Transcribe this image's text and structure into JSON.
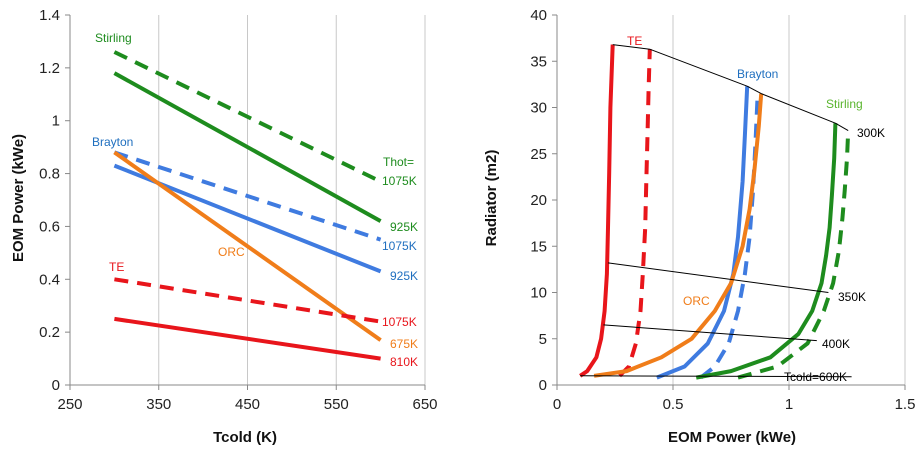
{
  "chart_data": [
    {
      "type": "line",
      "xlabel": "Tcold (K)",
      "ylabel": "EOM Power (kWe)",
      "xlim": [
        250,
        650
      ],
      "ylim": [
        0,
        1.4
      ],
      "xticks": [
        "250",
        "350",
        "450",
        "550",
        "650"
      ],
      "yticks": [
        "0",
        "0.2",
        "0.4",
        "0.6",
        "0.8",
        "1",
        "1.2",
        "1.4"
      ],
      "grid": "vertical",
      "series": [
        {
          "name": "Stirling",
          "label": "925K",
          "color": "#1e8c1e",
          "dash": "solid",
          "x": [
            300,
            600
          ],
          "y": [
            1.18,
            0.62
          ]
        },
        {
          "name": "Stirling",
          "label": "1075K",
          "color": "#1e8c1e",
          "dash": "dashed",
          "x": [
            300,
            600
          ],
          "y": [
            1.26,
            0.77
          ]
        },
        {
          "name": "Brayton",
          "label": "925K",
          "color": "#3f7be0",
          "dash": "solid",
          "x": [
            300,
            600
          ],
          "y": [
            0.83,
            0.43
          ]
        },
        {
          "name": "Brayton",
          "label": "1075K",
          "color": "#3f7be0",
          "dash": "dashed",
          "x": [
            300,
            600
          ],
          "y": [
            0.88,
            0.55
          ]
        },
        {
          "name": "ORC",
          "label": "675K",
          "color": "#f07d1a",
          "dash": "solid",
          "x": [
            300,
            600
          ],
          "y": [
            0.88,
            0.17
          ]
        },
        {
          "name": "TE",
          "label": "810K",
          "color": "#e8151b",
          "dash": "solid",
          "x": [
            300,
            600
          ],
          "y": [
            0.25,
            0.1
          ]
        },
        {
          "name": "TE",
          "label": "1075K",
          "color": "#e8151b",
          "dash": "dashed",
          "x": [
            300,
            600
          ],
          "y": [
            0.4,
            0.24
          ]
        }
      ],
      "annotations": [
        {
          "text": "Stirling",
          "color": "#1e8c1e"
        },
        {
          "text": "Brayton",
          "color": "#1f6fbf"
        },
        {
          "text": "ORC",
          "color": "#f07d1a"
        },
        {
          "text": "TE",
          "color": "#e8151b"
        },
        {
          "text": "Thot=",
          "color": "#1e8c1e"
        },
        {
          "text": "1075K",
          "color": "#1e8c1e"
        },
        {
          "text": "925K",
          "color": "#1e8c1e"
        },
        {
          "text": "1075K",
          "color": "#1f6fbf"
        },
        {
          "text": "925K",
          "color": "#1f6fbf"
        },
        {
          "text": "1075K",
          "color": "#e8151b"
        },
        {
          "text": "675K",
          "color": "#f07d1a"
        },
        {
          "text": "810K",
          "color": "#e8151b"
        }
      ]
    },
    {
      "type": "line",
      "xlabel": "EOM Power (kWe)",
      "ylabel": "Radiator (m2)",
      "xlim": [
        0,
        1.5
      ],
      "ylim": [
        0,
        40
      ],
      "xticks": [
        "0",
        "0.5",
        "1",
        "1.5"
      ],
      "yticks": [
        "0",
        "5",
        "10",
        "15",
        "20",
        "25",
        "30",
        "35",
        "40"
      ],
      "grid": "vertical",
      "series": [
        {
          "name": "TE",
          "color": "#e8151b",
          "dash": "solid",
          "x": [
            0.1,
            0.13,
            0.17,
            0.19,
            0.205,
            0.215,
            0.22,
            0.225,
            0.23,
            0.24
          ],
          "y": [
            1.0,
            1.5,
            3.0,
            5.0,
            8.0,
            12.0,
            17.0,
            23.0,
            30.0,
            36.8
          ]
        },
        {
          "name": "TE",
          "color": "#e8151b",
          "dash": "dashed",
          "x": [
            0.27,
            0.31,
            0.34,
            0.36,
            0.37,
            0.38,
            0.385,
            0.39,
            0.395,
            0.4
          ],
          "y": [
            1.0,
            2.0,
            4.5,
            8.0,
            12.0,
            17.0,
            22.0,
            27.0,
            32.0,
            36.3
          ]
        },
        {
          "name": "Brayton",
          "color": "#3f7be0",
          "dash": "solid",
          "x": [
            0.43,
            0.55,
            0.65,
            0.72,
            0.76,
            0.78,
            0.8,
            0.81,
            0.82
          ],
          "y": [
            0.8,
            2.0,
            4.5,
            8.0,
            12.0,
            16.0,
            22.0,
            27.0,
            32.3
          ]
        },
        {
          "name": "Brayton",
          "color": "#3f7be0",
          "dash": "dashed",
          "x": [
            0.62,
            0.68,
            0.74,
            0.78,
            0.81,
            0.83,
            0.845,
            0.855,
            0.865
          ],
          "y": [
            0.8,
            2.0,
            4.5,
            8.0,
            12.0,
            16.0,
            21.0,
            26.0,
            31.5
          ]
        },
        {
          "name": "ORC",
          "color": "#f07d1a",
          "dash": "solid",
          "x": [
            0.16,
            0.3,
            0.45,
            0.58,
            0.68,
            0.75,
            0.8,
            0.83,
            0.85,
            0.87,
            0.88
          ],
          "y": [
            1.0,
            1.5,
            3.0,
            5.0,
            8.0,
            11.0,
            15.0,
            19.0,
            23.0,
            28.0,
            31.5
          ]
        },
        {
          "name": "Stirling",
          "color": "#1e8c1e",
          "dash": "solid",
          "x": [
            0.6,
            0.75,
            0.92,
            1.04,
            1.1,
            1.14,
            1.16,
            1.175,
            1.185,
            1.195,
            1.2
          ],
          "y": [
            0.8,
            1.5,
            3.0,
            5.5,
            8.0,
            11.0,
            14.0,
            17.0,
            20.5,
            24.5,
            28.3
          ]
        },
        {
          "name": "Stirling",
          "color": "#1e8c1e",
          "dash": "dashed",
          "x": [
            0.78,
            0.95,
            1.08,
            1.15,
            1.19,
            1.215,
            1.23,
            1.24,
            1.25,
            1.255
          ],
          "y": [
            0.8,
            2.0,
            4.5,
            8.0,
            11.0,
            14.5,
            18.0,
            21.0,
            24.5,
            27.5
          ]
        },
        {
          "name": "300K",
          "color": "#000000",
          "dash": "thin",
          "x": [
            0.24,
            0.4,
            0.82,
            0.88,
            1.2,
            1.255
          ],
          "y": [
            36.8,
            36.3,
            32.3,
            31.5,
            28.3,
            27.5
          ]
        },
        {
          "name": "350K",
          "color": "#000000",
          "dash": "thin",
          "x": [
            0.22,
            1.17
          ],
          "y": [
            13.2,
            10.0
          ]
        },
        {
          "name": "400K",
          "color": "#000000",
          "dash": "thin",
          "x": [
            0.2,
            1.12
          ],
          "y": [
            6.5,
            4.8
          ]
        },
        {
          "name": "Tcold=600K",
          "color": "#000000",
          "dash": "thin",
          "x": [
            0.1,
            1.27
          ],
          "y": [
            1.0,
            0.9
          ]
        }
      ],
      "annotations": [
        {
          "text": "TE",
          "color": "#e8151b"
        },
        {
          "text": "Brayton",
          "color": "#1f6fbf"
        },
        {
          "text": "Stirling",
          "color": "#5ab52e"
        },
        {
          "text": "ORC",
          "color": "#f07d1a"
        },
        {
          "text": "300K",
          "color": "#000000"
        },
        {
          "text": "350K",
          "color": "#000000"
        },
        {
          "text": "400K",
          "color": "#000000"
        },
        {
          "text": "Tcold=600K",
          "color": "#000000"
        }
      ]
    }
  ]
}
